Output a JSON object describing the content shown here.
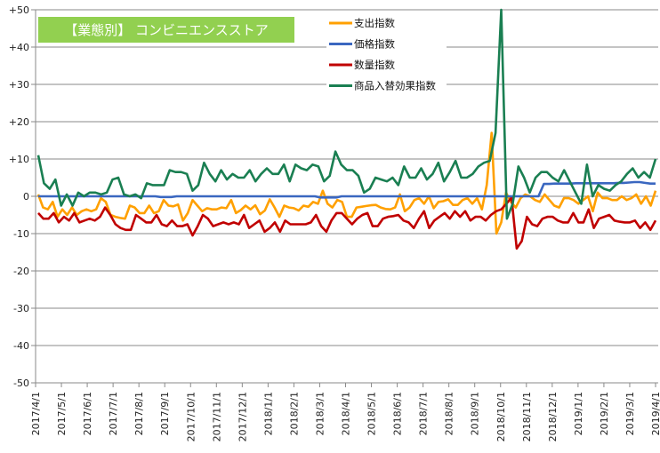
{
  "chart_data": {
    "type": "line",
    "title": "【業態別】 コンビニエンスストア",
    "title_bg_color": "#92D050",
    "xlabel": "",
    "ylabel": "",
    "ylim": [
      -50,
      50
    ],
    "yticks": [
      50,
      40,
      30,
      20,
      10,
      0,
      -10,
      -20,
      -30,
      -40,
      -50
    ],
    "ytick_labels": [
      "+50",
      "+40",
      "+30",
      "+20",
      "+10",
      "0",
      "-10",
      "-20",
      "-30",
      "-40",
      "-50"
    ],
    "grid": true,
    "legend_position": "top-center",
    "xtick_labels": [
      "2017/4/1",
      "2017/5/1",
      "2017/6/1",
      "2017/7/1",
      "2017/8/1",
      "2017/9/1",
      "2017/10/1",
      "2017/11/1",
      "2017/12/1",
      "2018/1/1",
      "2018/2/1",
      "2018/3/1",
      "2018/4/1",
      "2018/5/1",
      "2018/6/1",
      "2018/7/1",
      "2018/8/1",
      "2018/9/1",
      "2018/10/1",
      "2018/11/1",
      "2018/12/1",
      "2019/1/1",
      "2019/2/1",
      "2019/3/1",
      "2019/4/1"
    ],
    "x_range_weeks": [
      0,
      104
    ],
    "series": [
      {
        "name": "支出指数",
        "color": "#FFA000",
        "values": [
          0.5,
          -3,
          -3.5,
          -1.5,
          -5.5,
          -3.5,
          -5,
          -3,
          -5,
          -4,
          -3.5,
          -4,
          -3.5,
          -0.5,
          -1.5,
          -5,
          -5.5,
          -5.8,
          -6,
          -2.5,
          -3,
          -4.5,
          -4.5,
          -2.5,
          -4.5,
          -4,
          -1,
          -2.5,
          -2.7,
          -2.2,
          -6.5,
          -4.5,
          -1,
          -2.5,
          -4,
          -3.2,
          -3.5,
          -3.5,
          -3,
          -3.2,
          -1,
          -4.5,
          -3.7,
          -2.5,
          -3.5,
          -2.4,
          -4.8,
          -3.8,
          -0.8,
          -3,
          -5.5,
          -2.5,
          -3,
          -3.2,
          -3.8,
          -2.5,
          -2.8,
          -1.5,
          -2,
          1.5,
          -2,
          -3,
          -1,
          -1.5,
          -5.5,
          -5.5,
          -3,
          -2.8,
          -2.6,
          -2.4,
          -2.3,
          -3,
          -3.4,
          -3.5,
          -3,
          0.5,
          -4,
          -3,
          -1,
          -0.5,
          -2,
          0,
          -3.2,
          -1.5,
          -1.3,
          -0.8,
          -2.3,
          -2.3,
          -1,
          -0.5,
          -2,
          -0.5,
          -3.5,
          3,
          17,
          -10,
          -7,
          1,
          -1.5,
          -3,
          -0.5,
          0.5,
          0,
          -1,
          -1.5,
          0.5,
          -1,
          -2.5,
          -3,
          -0.5,
          -0.5,
          -1,
          -2,
          -1,
          0,
          -4,
          1,
          -0.5,
          -0.5,
          -1,
          -1,
          0,
          -1,
          -0.5,
          0.5,
          -2,
          0,
          -2.5,
          1.5
        ],
        "values_note": "weekly"
      },
      {
        "name": "価格指数",
        "color": "#3A67C0",
        "values_desc": "approx 0 until 2018/9, then approx +3.5",
        "values": [
          0,
          0,
          0,
          0,
          0,
          0,
          0,
          0,
          0,
          0,
          0,
          0,
          0,
          0,
          0,
          0,
          0,
          0,
          0,
          0,
          0,
          0,
          0,
          -0.2,
          -0.2,
          -0.2,
          0,
          0,
          0,
          0,
          0,
          0,
          0,
          0,
          0,
          0,
          0,
          0,
          0,
          0,
          0,
          0,
          0,
          0,
          0,
          0,
          0,
          0,
          0,
          0,
          0,
          0,
          0,
          -0.3,
          -0.3,
          -0.3,
          -0.3,
          0,
          0,
          0,
          0,
          0,
          0,
          0,
          0,
          0,
          0,
          0,
          0,
          0,
          0,
          0,
          0,
          0,
          0,
          0,
          0,
          0,
          0,
          0,
          0,
          0,
          0,
          0,
          0,
          0,
          0,
          0,
          0,
          0,
          0,
          0,
          0,
          0,
          0,
          3.3,
          3.3,
          3.4,
          3.4,
          3.4,
          3.4,
          3.5,
          3.5,
          3.5,
          3.5,
          3.5,
          3.5,
          3.5,
          3.5,
          3.6,
          3.6,
          3.7,
          3.8,
          3.8,
          3.6,
          3.4,
          3.4
        ]
      },
      {
        "name": "数量指数",
        "color": "#C00000",
        "values": [
          -4.5,
          -6,
          -6,
          -4.5,
          -7,
          -5.5,
          -6.5,
          -4.5,
          -7,
          -6.5,
          -6,
          -6.5,
          -5.5,
          -3,
          -5,
          -7.5,
          -8.5,
          -9,
          -9,
          -5,
          -6,
          -7,
          -7,
          -5,
          -7.5,
          -8,
          -6.5,
          -8,
          -8,
          -7.5,
          -10.5,
          -8,
          -5,
          -6,
          -8,
          -7.5,
          -7,
          -7.5,
          -7,
          -7.5,
          -5,
          -8.5,
          -7.5,
          -6.5,
          -9.5,
          -8.5,
          -7,
          -9.5,
          -6.5,
          -7.5,
          -7.5,
          -7.5,
          -7.5,
          -7,
          -5,
          -8,
          -9.5,
          -6.5,
          -4.5,
          -4.5,
          -6,
          -7.5,
          -6,
          -5,
          -4.5,
          -8,
          -8,
          -6,
          -5.5,
          -5.3,
          -5,
          -6.5,
          -7,
          -8.5,
          -6,
          -4,
          -8.5,
          -6.5,
          -5.5,
          -4.5,
          -6,
          -4,
          -5.5,
          -4,
          -6.5,
          -5.5,
          -5.5,
          -6.5,
          -5,
          -4,
          -3.5,
          -2,
          -0.3,
          -14,
          -12,
          -5.5,
          -7.5,
          -8,
          -6,
          -5.5,
          -5.5,
          -6.5,
          -7,
          -7,
          -4.5,
          -7,
          -7,
          -3.5,
          -8.5,
          -6,
          -5.5,
          -5,
          -6.5,
          -6.8,
          -7,
          -7,
          -6.5,
          -8.5,
          -7,
          -9,
          -6.5
        ],
        "values_note": "weekly"
      },
      {
        "name": "商品入替効果指数",
        "color": "#1A7F52",
        "values": [
          11,
          3.5,
          2,
          4.5,
          -2.5,
          0.5,
          -2.5,
          1,
          0,
          1,
          1,
          0.5,
          1,
          4.5,
          5,
          0.5,
          0,
          0.5,
          -0.5,
          3.5,
          3,
          3,
          3,
          7,
          6.5,
          6.5,
          6,
          1.5,
          3,
          9,
          6,
          4,
          7,
          4.5,
          6,
          5,
          5,
          7,
          4,
          6,
          7.5,
          6,
          6,
          8.5,
          4,
          8.5,
          7.5,
          7,
          8.5,
          8,
          4,
          5.5,
          12,
          8.5,
          7,
          7,
          5.5,
          1,
          2,
          5,
          4.5,
          4,
          5,
          3,
          8,
          5,
          5,
          7.5,
          4.5,
          6,
          9,
          4,
          6.5,
          9.5,
          5,
          5,
          6,
          8,
          9,
          9.5,
          17,
          50,
          -6,
          -2,
          8,
          5,
          1,
          5,
          6.5,
          6.5,
          5,
          4,
          7,
          4,
          1,
          -2,
          8.5,
          0,
          3,
          2,
          1.5,
          3,
          4,
          6,
          7.5,
          5,
          6.5,
          5,
          10
        ],
        "values_note": "weekly"
      }
    ]
  }
}
